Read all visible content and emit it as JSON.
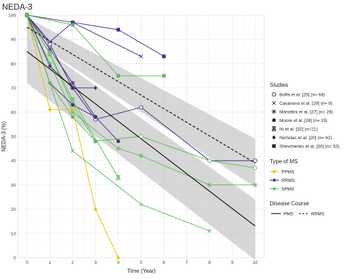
{
  "chart_data": {
    "type": "line",
    "title": "NEDA-3",
    "xlabel": "Time (Year)",
    "ylabel": "NEDA-3 (%)",
    "xlim": [
      -0.4,
      10.4
    ],
    "ylim": [
      0,
      100
    ],
    "x_ticks": [
      "0",
      "1",
      "2",
      "3",
      "4",
      "5",
      "6",
      "7",
      "8",
      "9",
      "10"
    ],
    "y_ticks": [
      "0",
      "10",
      "20",
      "30",
      "40",
      "50",
      "60",
      "70",
      "80",
      "90",
      "100"
    ],
    "grid": true,
    "colors": {
      "PPMS": "#e8c400",
      "RRMS": "#4b2e83",
      "SPMS": "#5cbf5c",
      "band": "#bdbdbd"
    },
    "series": [
      {
        "name": "Boffa et al. [25] (n= 68)",
        "type": "RRMS",
        "marker": "open-circle",
        "x": [
          0,
          1,
          2,
          3,
          5,
          8,
          10
        ],
        "y": [
          100,
          88,
          70,
          57,
          62,
          40,
          40
        ]
      },
      {
        "name": "Boffa et al. [25] (n= 68)",
        "type": "SPMS",
        "marker": "open-circle",
        "x": [
          0,
          1,
          2,
          3,
          5,
          8,
          10
        ],
        "y": [
          100,
          84,
          63,
          48,
          50,
          40,
          37
        ]
      },
      {
        "name": "Casanova et al. [29] (n= 9)",
        "type": "RRMS",
        "marker": "cross",
        "x": [
          0,
          1,
          2,
          5
        ],
        "y": [
          100,
          89,
          97,
          83
        ]
      },
      {
        "name": "Casanova et al. [29] (n= 9)",
        "type": "SPMS",
        "marker": "cross",
        "x": [
          0,
          2,
          5,
          8
        ],
        "y": [
          100,
          44,
          22,
          11
        ]
      },
      {
        "name": "Mariottini et al. [27] (n= 26)",
        "type": "RRMS",
        "marker": "asterisk",
        "x": [
          0,
          1,
          2,
          3
        ],
        "y": [
          100,
          86,
          72,
          58
        ]
      },
      {
        "name": "Mariottini et al. [27] (n= 26)",
        "type": "SPMS",
        "marker": "asterisk",
        "x": [
          0,
          1,
          2,
          4,
          5,
          8,
          10
        ],
        "y": [
          100,
          80,
          60,
          45,
          42,
          30,
          30
        ]
      },
      {
        "name": "Moore et al. [28] (n= 15)",
        "type": "RRMS",
        "marker": "filled-circle",
        "x": [
          0,
          1,
          2,
          3,
          4
        ],
        "y": [
          100,
          72,
          63,
          58,
          48
        ]
      },
      {
        "name": "Moore et al. [28] (n= 15)",
        "type": "SPMS",
        "marker": "filled-circle",
        "x": [
          0,
          1,
          2,
          3
        ],
        "y": [
          100,
          72,
          58,
          48
        ]
      },
      {
        "name": "Ni et al. [32] (n=21)",
        "type": "SPMS",
        "marker": "hourglass",
        "x": [
          0,
          1,
          2,
          4
        ],
        "y": [
          100,
          84,
          65,
          33
        ]
      },
      {
        "name": "Nicholas et al. [20] (n= 62)",
        "type": "PPMS",
        "marker": "diamond",
        "x": [
          0,
          1,
          2,
          3,
          4
        ],
        "y": [
          100,
          61,
          61,
          20,
          0
        ]
      },
      {
        "name": "Nicholas et al. [20] (n= 62)",
        "type": "RRMS",
        "marker": "diamond",
        "x": [
          0,
          1,
          2,
          3
        ],
        "y": [
          100,
          79,
          70,
          70
        ]
      },
      {
        "name": "Shevchenko et al. [30] (n= 53)",
        "type": "RRMS",
        "marker": "square",
        "x": [
          0,
          2,
          4,
          6
        ],
        "y": [
          100,
          97,
          94,
          83
        ]
      },
      {
        "name": "Shevchenko et al. [30] (n= 53)",
        "type": "SPMS",
        "marker": "square",
        "x": [
          0,
          2,
          4,
          6
        ],
        "y": [
          100,
          96,
          75,
          75
        ]
      }
    ],
    "regressions": [
      {
        "course": "PMS",
        "dash": "solid",
        "x": [
          0,
          10
        ],
        "y": [
          85,
          13
        ],
        "band_x": [
          0,
          10
        ],
        "band_upper": [
          91,
          24
        ],
        "band_lower": [
          72,
          -1
        ]
      },
      {
        "course": "RRMS",
        "dash": "dashed",
        "x": [
          0,
          10
        ],
        "y": [
          95,
          39
        ],
        "band_x": [
          0,
          10
        ],
        "band_upper": [
          99,
          49
        ],
        "band_lower": [
          91,
          29
        ]
      }
    ],
    "legend": {
      "placement": "right",
      "studies_title": "Studies",
      "studies": [
        {
          "label": "Boffa et al. [25] (n= 68)",
          "marker": "open-circle"
        },
        {
          "label": "Casanova et al. [29] (n= 9)",
          "marker": "cross"
        },
        {
          "label": "Mariottini et al. [27] (n= 26)",
          "marker": "asterisk"
        },
        {
          "label": "Moore et al. [28] (n= 15)",
          "marker": "filled-circle"
        },
        {
          "label": "Ni et al. [32] (n=21)",
          "marker": "hourglass"
        },
        {
          "label": "Nicholas et al. [20] (n= 62)",
          "marker": "diamond"
        },
        {
          "label": "Shevchenko et al. [30] (n= 53)",
          "marker": "square"
        }
      ],
      "type_title": "Type of MS",
      "types": [
        {
          "label": "PPMS",
          "color": "#e8c400"
        },
        {
          "label": "RRMS",
          "color": "#4b2e83"
        },
        {
          "label": "SPMS",
          "color": "#5cbf5c"
        }
      ],
      "course_title": "Disease Course",
      "courses": [
        {
          "label": "PMS",
          "dash": "solid"
        },
        {
          "label": "RRMS",
          "dash": "dashed"
        }
      ]
    }
  }
}
